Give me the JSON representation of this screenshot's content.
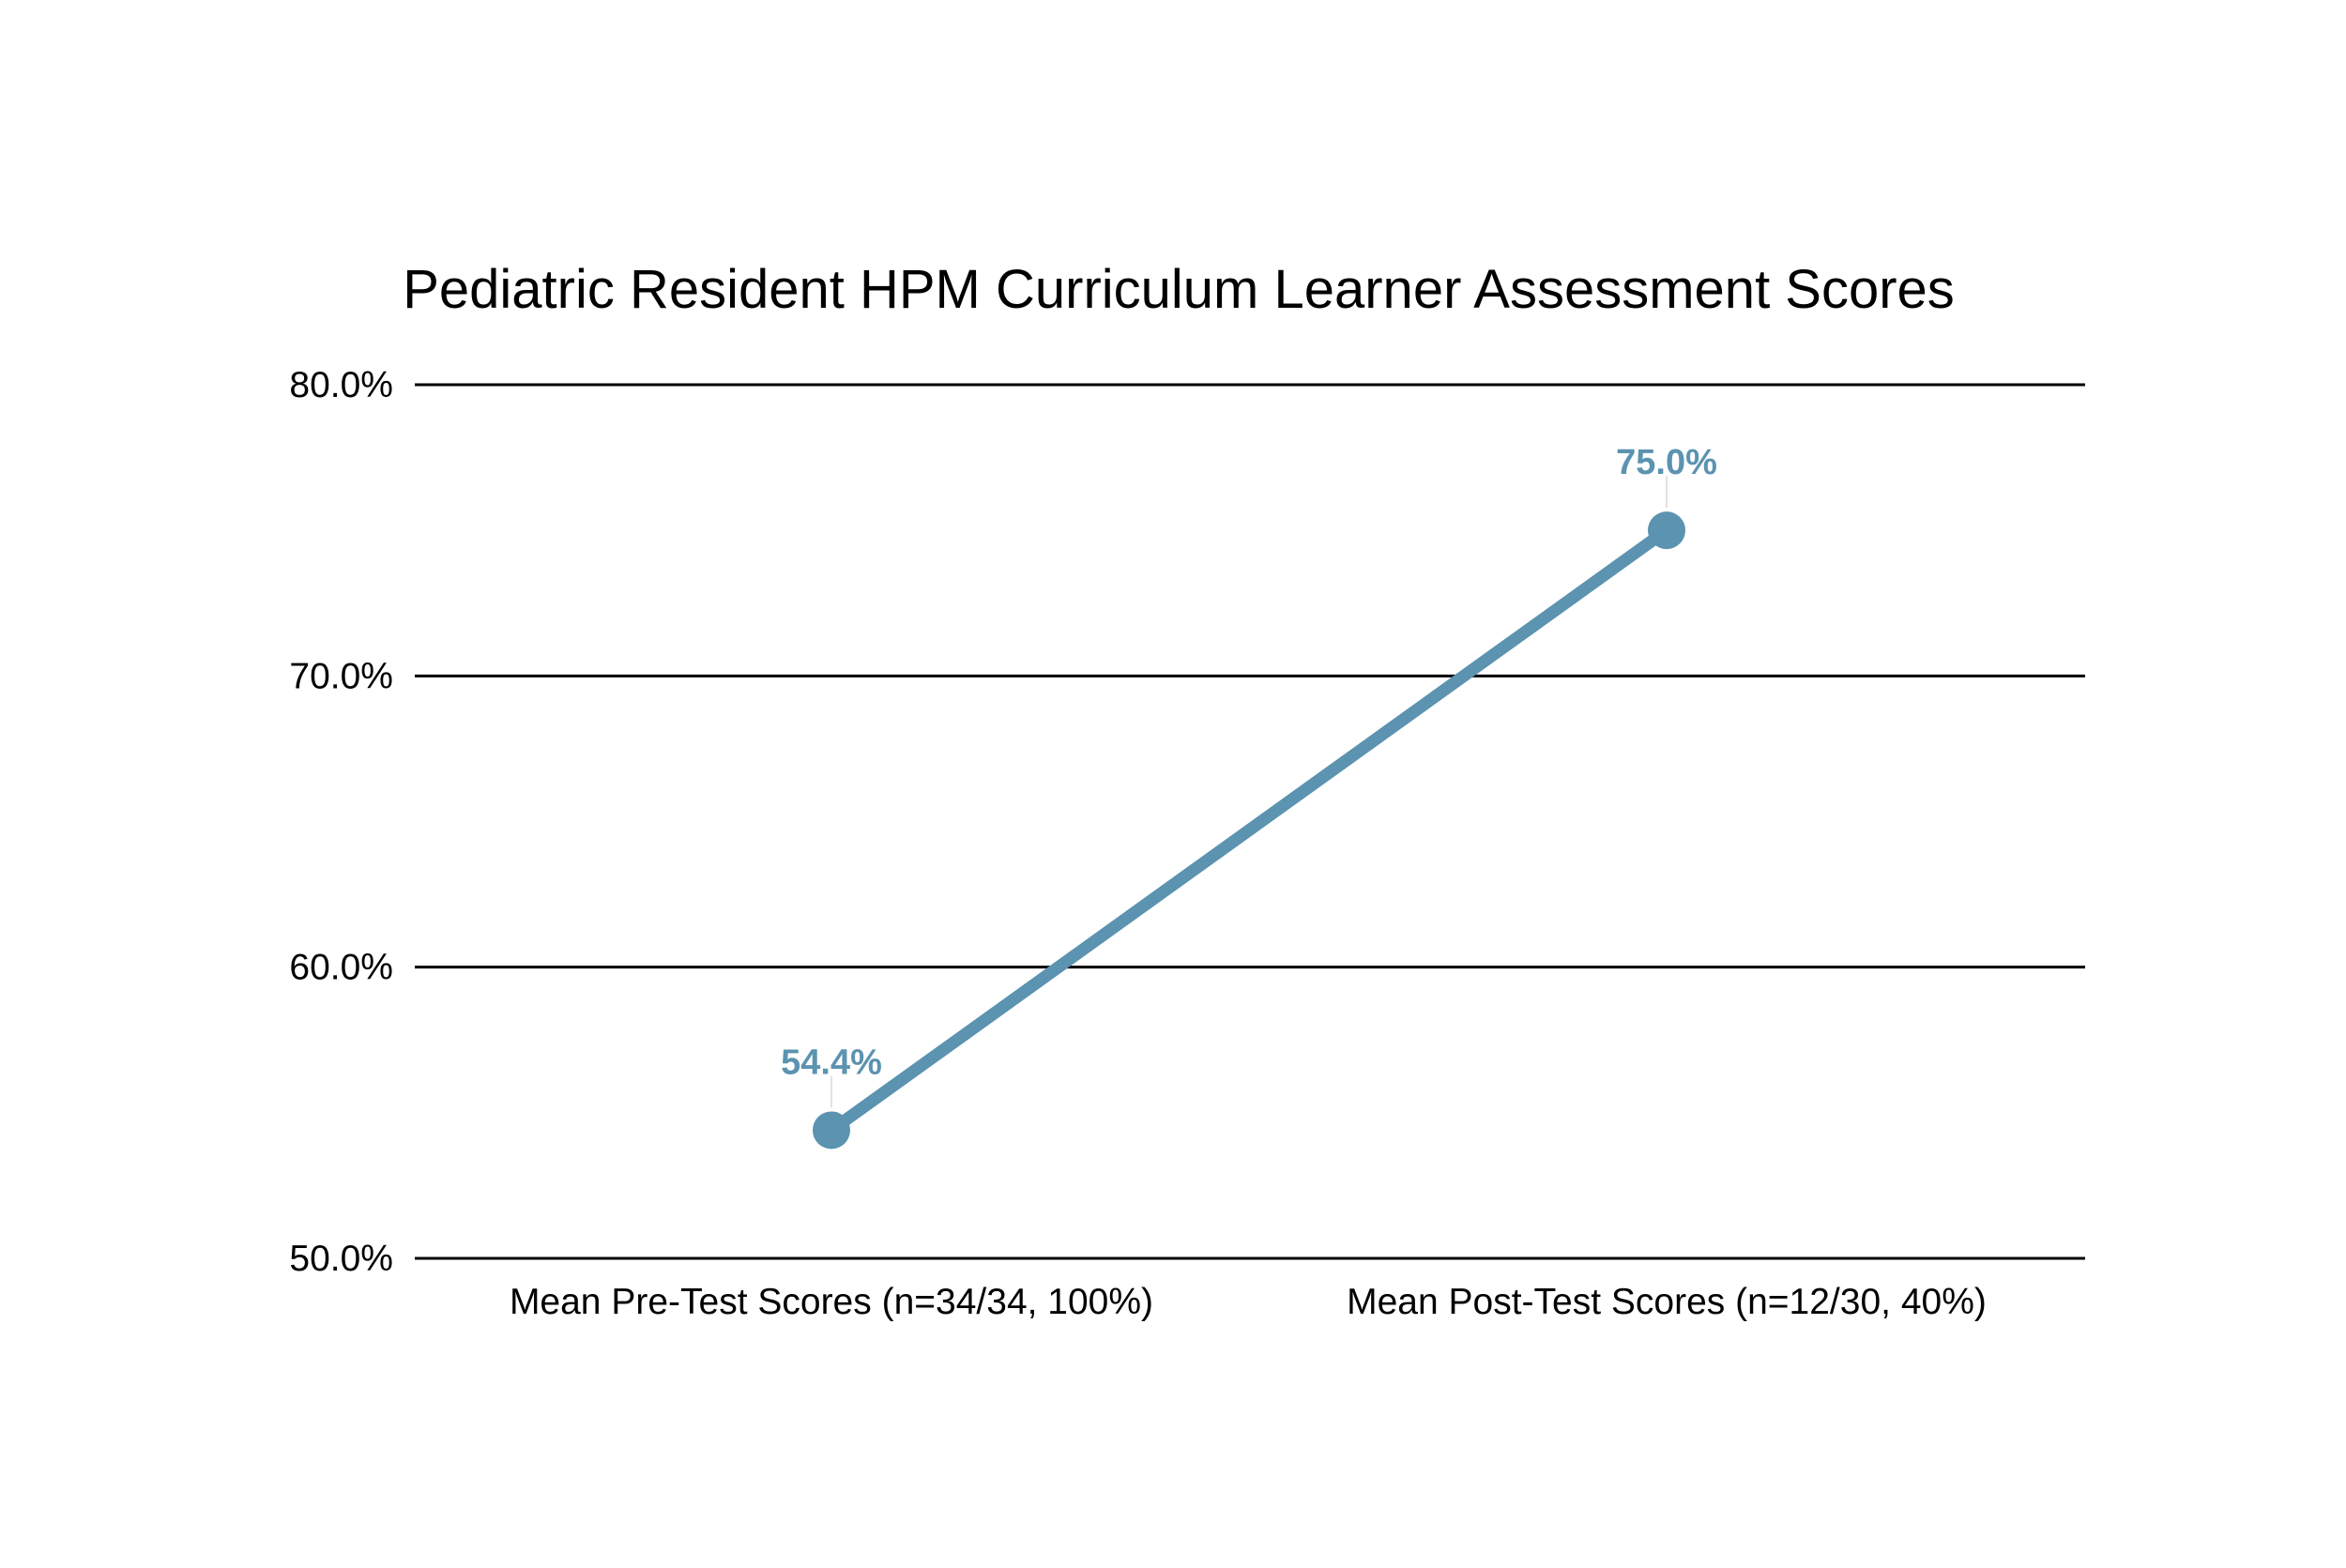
{
  "chart_data": {
    "type": "line",
    "title": "Pediatric Resident HPM Curriculum Learner Assessment Scores",
    "xlabel": "",
    "ylabel": "",
    "categories": [
      "Mean Pre-Test Scores (n=34/34, 100%)",
      "Mean Post-Test Scores (n=12/30, 40%)"
    ],
    "series": [
      {
        "values": [
          54.4,
          75.0
        ],
        "data_labels": [
          "54.4%",
          "75.0%"
        ],
        "color": "#5b93b0"
      }
    ],
    "ylim": [
      50,
      80
    ],
    "yticks": [
      50,
      60,
      70,
      80
    ],
    "ytick_labels": [
      "50.0%",
      "60.0%",
      "70.0%",
      "80.0%"
    ],
    "grid": true,
    "legend": "none"
  }
}
